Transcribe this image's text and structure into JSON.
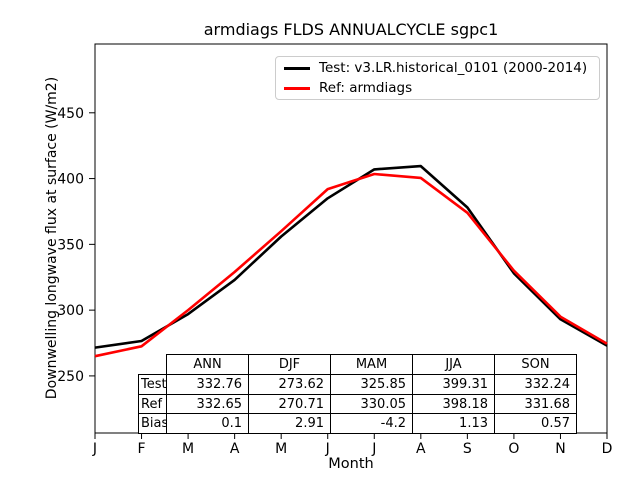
{
  "chart_data": {
    "type": "line",
    "title": "armdiags FLDS ANNUALCYCLE sgpc1",
    "xlabel": "Month",
    "ylabel": "Downwelling longwave flux at surface (W/m2)",
    "x_labels": [
      "J",
      "F",
      "M",
      "A",
      "M",
      "J",
      "J",
      "A",
      "S",
      "O",
      "N",
      "D"
    ],
    "yticks": [
      250,
      300,
      350,
      400,
      450
    ],
    "ylim": [
      206.6,
      502.3
    ],
    "grid": false,
    "legend_position": "upper right",
    "series": [
      {
        "name": "Test: v3.LR.historical_0101 (2000-2014)",
        "color": "#000000",
        "values": [
          271.5,
          276.5,
          297,
          323,
          356,
          385,
          407,
          409.5,
          378,
          328,
          293,
          273
        ]
      },
      {
        "name": "Ref: armdiags",
        "color": "#ff0000",
        "values": [
          265,
          272.5,
          300,
          329,
          360,
          392,
          403.5,
          400.5,
          374,
          330,
          295,
          274.5
        ]
      }
    ],
    "stats_table": {
      "col_headers": [
        "ANN",
        "DJF",
        "MAM",
        "JJA",
        "SON"
      ],
      "rows": [
        {
          "label": "Test",
          "values": [
            "332.76",
            "273.62",
            "325.85",
            "399.31",
            "332.24"
          ]
        },
        {
          "label": "Ref",
          "values": [
            "332.65",
            "270.71",
            "330.05",
            "398.18",
            "331.68"
          ]
        },
        {
          "label": "Bias",
          "values": [
            "0.1",
            "2.91",
            "-4.2",
            "1.13",
            "0.57"
          ]
        }
      ]
    }
  }
}
